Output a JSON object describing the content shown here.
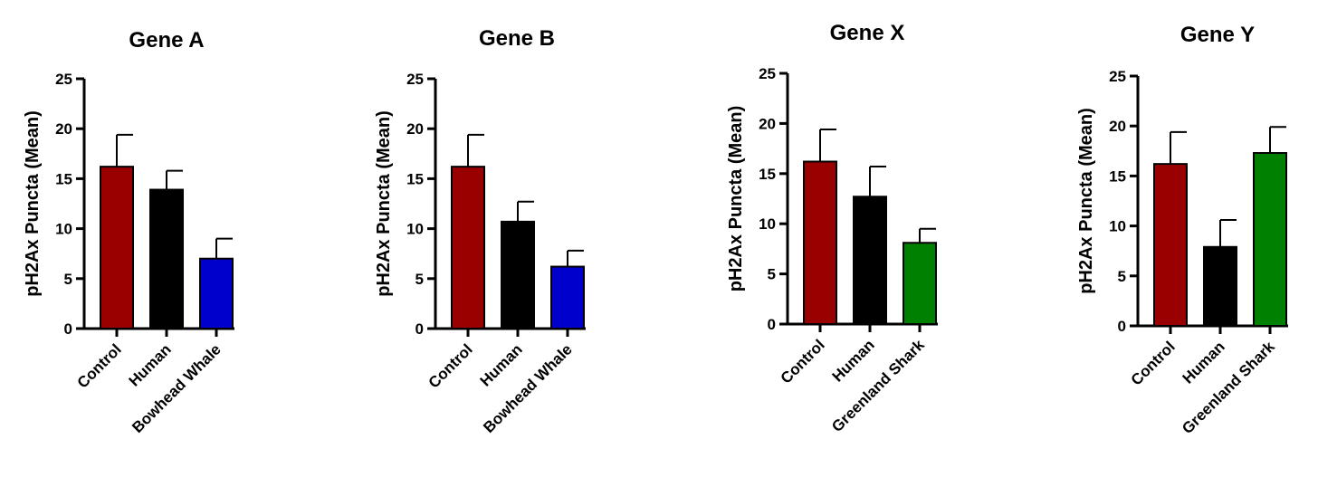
{
  "colors": {
    "control": "#990000",
    "human": "#000000",
    "bowhead": "#0000CC",
    "shark": "#008000"
  },
  "chart_data": [
    {
      "type": "bar",
      "title": "Gene A",
      "xlabel": "",
      "ylabel": "pH2Ax Puncta (Mean)",
      "ylim": [
        0,
        25
      ],
      "yticks": [
        "0",
        "5",
        "10",
        "15",
        "20",
        "25"
      ],
      "categories": [
        "Control",
        "Human",
        "Bowhead Whale"
      ],
      "values": [
        16.2,
        13.9,
        7.0
      ],
      "errors": [
        3.2,
        1.9,
        2.0
      ],
      "bar_colors": [
        "#990000",
        "#000000",
        "#0000CC"
      ]
    },
    {
      "type": "bar",
      "title": "Gene B",
      "xlabel": "",
      "ylabel": "pH2Ax Puncta (Mean)",
      "ylim": [
        0,
        25
      ],
      "yticks": [
        "0",
        "5",
        "10",
        "15",
        "20",
        "25"
      ],
      "categories": [
        "Control",
        "Human",
        "Bowhead Whale"
      ],
      "values": [
        16.2,
        10.7,
        6.2
      ],
      "errors": [
        3.2,
        2.0,
        1.6
      ],
      "bar_colors": [
        "#990000",
        "#000000",
        "#0000CC"
      ]
    },
    {
      "type": "bar",
      "title": "Gene X",
      "xlabel": "",
      "ylabel": "pH2Ax Puncta (Mean)",
      "ylim": [
        0,
        25
      ],
      "yticks": [
        "0",
        "5",
        "10",
        "15",
        "20",
        "25"
      ],
      "categories": [
        "Control",
        "Human",
        "Greenland Shark"
      ],
      "values": [
        16.2,
        12.7,
        8.1
      ],
      "errors": [
        3.2,
        3.0,
        1.4
      ],
      "bar_colors": [
        "#990000",
        "#000000",
        "#008000"
      ]
    },
    {
      "type": "bar",
      "title": "Gene Y",
      "xlabel": "",
      "ylabel": "pH2Ax Puncta (Mean)",
      "ylim": [
        0,
        25
      ],
      "yticks": [
        "0",
        "5",
        "10",
        "15",
        "20",
        "25"
      ],
      "categories": [
        "Control",
        "Human",
        "Greenland Shark"
      ],
      "values": [
        16.2,
        7.9,
        17.3
      ],
      "errors": [
        3.2,
        2.7,
        2.6
      ],
      "bar_colors": [
        "#990000",
        "#000000",
        "#008000"
      ]
    }
  ]
}
